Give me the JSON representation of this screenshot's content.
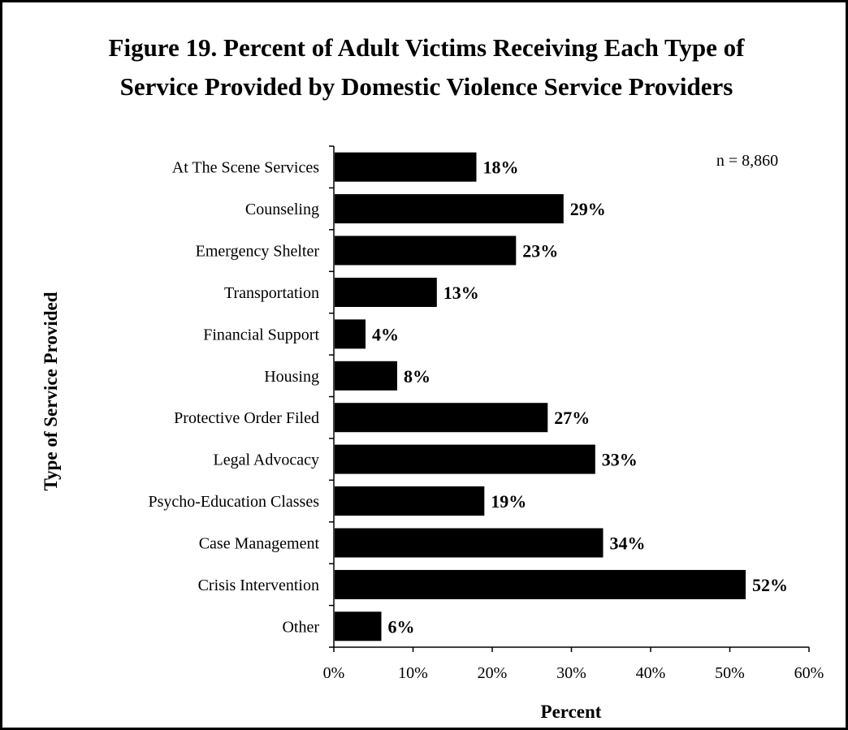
{
  "chart_data": {
    "type": "bar",
    "orientation": "horizontal",
    "title_line1": "Figure 19. Percent of Adult Victims Receiving Each Type of",
    "title_line2": "Service Provided by Domestic Violence Service Providers",
    "xlabel": "Percent",
    "ylabel": "Type of Service Provided",
    "annotation": "n = 8,860",
    "categories": [
      "At The Scene Services",
      "Counseling",
      "Emergency Shelter",
      "Transportation",
      "Financial Support",
      "Housing",
      "Protective Order Filed",
      "Legal Advocacy",
      "Psycho-Education Classes",
      "Case Management",
      "Crisis Intervention",
      "Other"
    ],
    "values": [
      18,
      29,
      23,
      13,
      4,
      8,
      27,
      33,
      19,
      34,
      52,
      6
    ],
    "value_labels": [
      "18%",
      "29%",
      "23%",
      "13%",
      "4%",
      "8%",
      "27%",
      "33%",
      "19%",
      "34%",
      "52%",
      "6%"
    ],
    "xlim": [
      0,
      60
    ],
    "xticks": [
      0,
      10,
      20,
      30,
      40,
      50,
      60
    ],
    "xtick_labels": [
      "0%",
      "10%",
      "20%",
      "30%",
      "40%",
      "50%",
      "60%"
    ],
    "grid": false,
    "bar_color": "#000000"
  }
}
